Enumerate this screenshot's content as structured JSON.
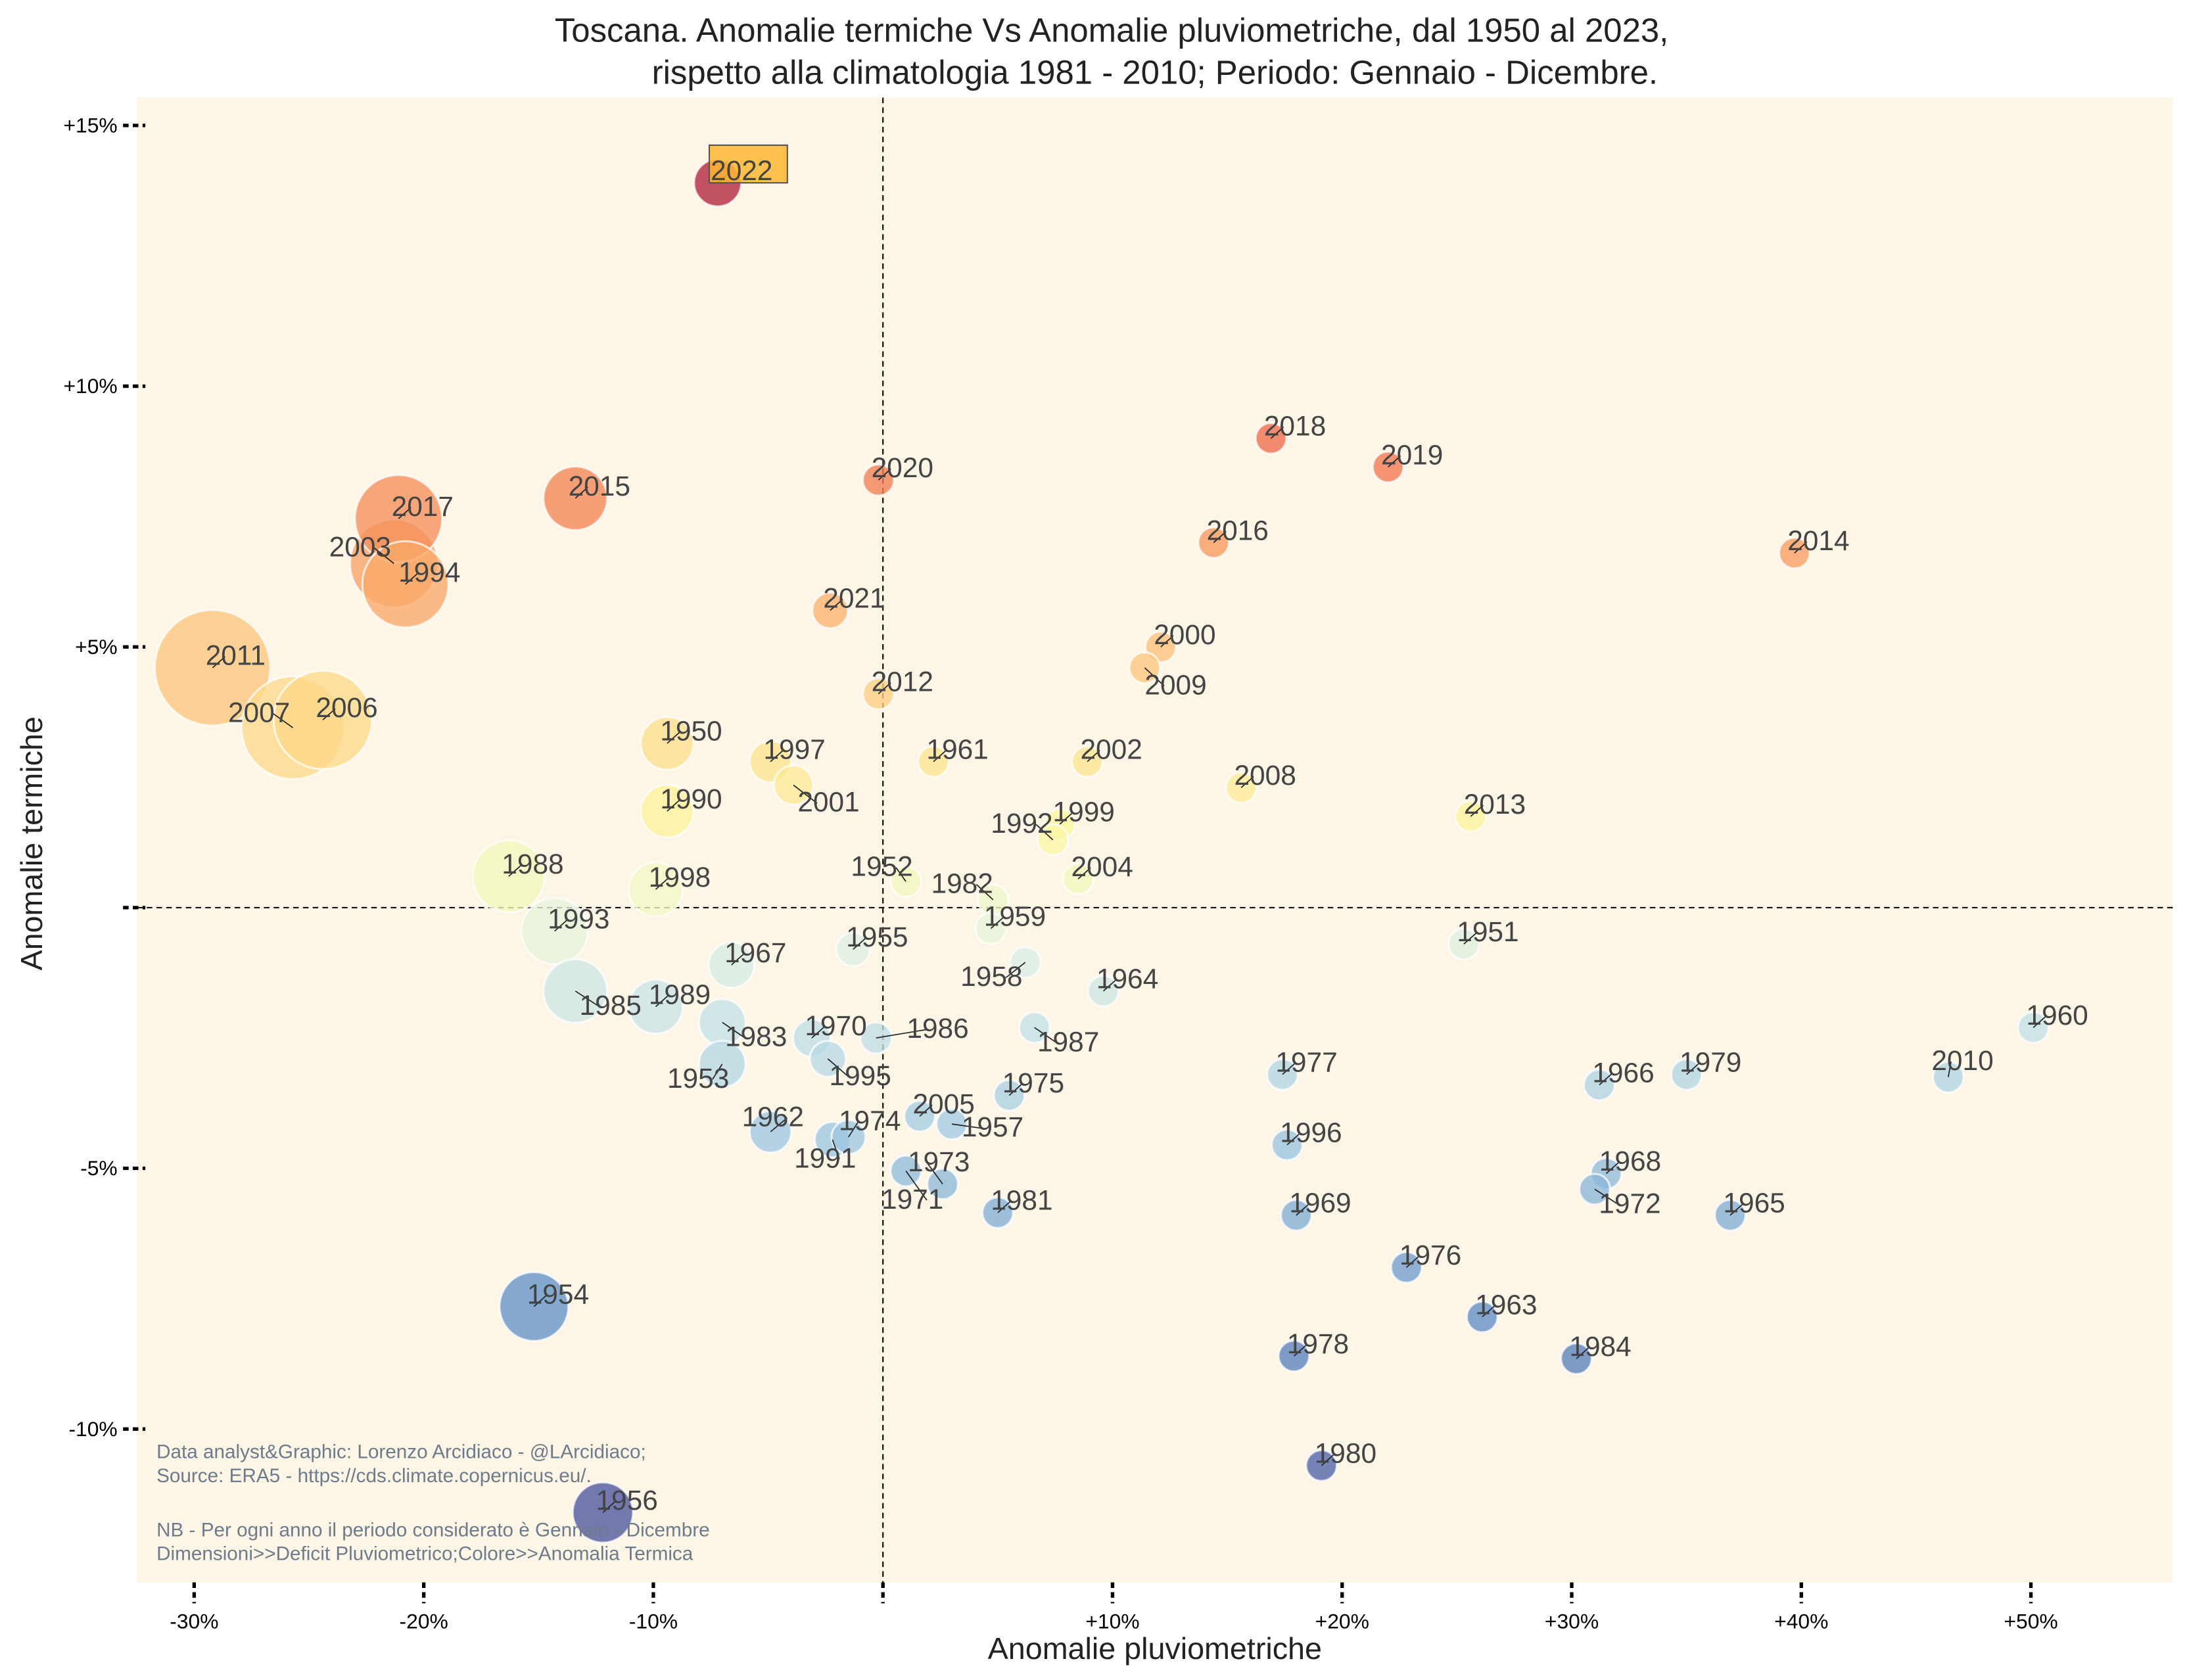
{
  "chart_data": {
    "type": "scatter",
    "title_line1": "Toscana. Anomalie termiche Vs Anomalie pluviometriche, dal 1950 al 2023,",
    "title_line2": "rispetto alla climatologia 1981 - 2010; Periodo: Gennaio - Dicembre.",
    "xlabel": "Anomalie pluviometriche",
    "ylabel": "Anomalie termiche",
    "xlim": [
      -32.5,
      56
    ],
    "ylim": [
      -13,
      15.5
    ],
    "x_ticks": [
      {
        "value": -30,
        "label": "-30%"
      },
      {
        "value": -20,
        "label": "-20%"
      },
      {
        "value": -10,
        "label": "-10%"
      },
      {
        "value": 0,
        "label": ""
      },
      {
        "value": 10,
        "label": "+10%"
      },
      {
        "value": 20,
        "label": "+20%"
      },
      {
        "value": 30,
        "label": "+30%"
      },
      {
        "value": 40,
        "label": "+40%"
      },
      {
        "value": 50,
        "label": "+50%"
      }
    ],
    "y_ticks": [
      {
        "value": 15,
        "label": "+15%"
      },
      {
        "value": 10,
        "label": "+10%"
      },
      {
        "value": 5,
        "label": "+5%"
      },
      {
        "value": 0,
        "label": ""
      },
      {
        "value": -5,
        "label": "-5%"
      },
      {
        "value": -10,
        "label": "-10%"
      }
    ],
    "grid": false,
    "reference_lines": {
      "x": 0,
      "y": 0
    },
    "size_encoding": "Deficit Pluviometrico",
    "color_encoding": "Anomalia Termica",
    "highlight": "2022",
    "points": [
      {
        "year": "2022",
        "x": -7.2,
        "y": 13.9
      },
      {
        "year": "2018",
        "x": 16.9,
        "y": 9.0
      },
      {
        "year": "2019",
        "x": 22.0,
        "y": 8.45
      },
      {
        "year": "2020",
        "x": -0.2,
        "y": 8.2
      },
      {
        "year": "2015",
        "x": -13.4,
        "y": 7.85
      },
      {
        "year": "2017",
        "x": -21.1,
        "y": 7.46
      },
      {
        "year": "2003",
        "x": -21.3,
        "y": 6.6
      },
      {
        "year": "1994",
        "x": -20.8,
        "y": 6.2
      },
      {
        "year": "2016",
        "x": 14.4,
        "y": 7.0
      },
      {
        "year": "2014",
        "x": 39.7,
        "y": 6.8
      },
      {
        "year": "2021",
        "x": -2.3,
        "y": 5.7
      },
      {
        "year": "2011",
        "x": -29.2,
        "y": 4.6
      },
      {
        "year": "2000",
        "x": 12.1,
        "y": 5.0
      },
      {
        "year": "2009",
        "x": 11.4,
        "y": 4.6
      },
      {
        "year": "2012",
        "x": -0.2,
        "y": 4.1
      },
      {
        "year": "2007",
        "x": -25.7,
        "y": 3.45
      },
      {
        "year": "2006",
        "x": -24.4,
        "y": 3.6
      },
      {
        "year": "1950",
        "x": -9.4,
        "y": 3.15
      },
      {
        "year": "1997",
        "x": -4.9,
        "y": 2.8
      },
      {
        "year": "2001",
        "x": -3.9,
        "y": 2.35
      },
      {
        "year": "1961",
        "x": 2.2,
        "y": 2.8
      },
      {
        "year": "2002",
        "x": 8.9,
        "y": 2.8
      },
      {
        "year": "2008",
        "x": 15.6,
        "y": 2.3
      },
      {
        "year": "2013",
        "x": 25.6,
        "y": 1.75
      },
      {
        "year": "1990",
        "x": -9.4,
        "y": 1.85
      },
      {
        "year": "1999",
        "x": 7.7,
        "y": 1.6
      },
      {
        "year": "1992",
        "x": 7.4,
        "y": 1.3
      },
      {
        "year": "2004",
        "x": 8.5,
        "y": 0.55
      },
      {
        "year": "1988",
        "x": -16.3,
        "y": 0.6
      },
      {
        "year": "1998",
        "x": -9.9,
        "y": 0.35
      },
      {
        "year": "1952",
        "x": 1.0,
        "y": 0.5
      },
      {
        "year": "1982",
        "x": 4.8,
        "y": 0.15
      },
      {
        "year": "1993",
        "x": -14.3,
        "y": -0.45
      },
      {
        "year": "1959",
        "x": 4.7,
        "y": -0.4
      },
      {
        "year": "1955",
        "x": -1.3,
        "y": -0.8
      },
      {
        "year": "1951",
        "x": 25.3,
        "y": -0.7
      },
      {
        "year": "1967",
        "x": -6.6,
        "y": -1.1
      },
      {
        "year": "1958",
        "x": 6.2,
        "y": -1.05
      },
      {
        "year": "1964",
        "x": 9.6,
        "y": -1.6
      },
      {
        "year": "1985",
        "x": -13.4,
        "y": -1.6
      },
      {
        "year": "1989",
        "x": -9.9,
        "y": -1.9
      },
      {
        "year": "1983",
        "x": -7.0,
        "y": -2.2
      },
      {
        "year": "1960",
        "x": 50.1,
        "y": -2.3
      },
      {
        "year": "1970",
        "x": -3.1,
        "y": -2.5
      },
      {
        "year": "1986",
        "x": -0.3,
        "y": -2.5
      },
      {
        "year": "1987",
        "x": 6.6,
        "y": -2.3
      },
      {
        "year": "1953",
        "x": -7.0,
        "y": -3.0
      },
      {
        "year": "1995",
        "x": -2.4,
        "y": -2.9
      },
      {
        "year": "1977",
        "x": 17.4,
        "y": -3.2
      },
      {
        "year": "2010",
        "x": 46.4,
        "y": -3.25
      },
      {
        "year": "1966",
        "x": 31.2,
        "y": -3.4
      },
      {
        "year": "1979",
        "x": 35.0,
        "y": -3.2
      },
      {
        "year": "1975",
        "x": 5.5,
        "y": -3.6
      },
      {
        "year": "2005",
        "x": 1.6,
        "y": -4.0
      },
      {
        "year": "1957",
        "x": 3.0,
        "y": -4.15
      },
      {
        "year": "1962",
        "x": -4.9,
        "y": -4.3
      },
      {
        "year": "1974",
        "x": -1.5,
        "y": -4.4
      },
      {
        "year": "1991",
        "x": -2.2,
        "y": -4.45
      },
      {
        "year": "1996",
        "x": 17.6,
        "y": -4.55
      },
      {
        "year": "1968",
        "x": 31.5,
        "y": -5.1
      },
      {
        "year": "1973",
        "x": 2.6,
        "y": -5.3
      },
      {
        "year": "1972",
        "x": 31.0,
        "y": -5.4
      },
      {
        "year": "1971",
        "x": 1.0,
        "y": -5.05
      },
      {
        "year": "1981",
        "x": 5.0,
        "y": -5.85
      },
      {
        "year": "1969",
        "x": 18.0,
        "y": -5.9
      },
      {
        "year": "1965",
        "x": 36.9,
        "y": -5.9
      },
      {
        "year": "1976",
        "x": 22.8,
        "y": -6.9
      },
      {
        "year": "1954",
        "x": -15.2,
        "y": -7.65
      },
      {
        "year": "1963",
        "x": 26.1,
        "y": -7.85
      },
      {
        "year": "1978",
        "x": 17.9,
        "y": -8.6
      },
      {
        "year": "1984",
        "x": 30.2,
        "y": -8.65
      },
      {
        "year": "1980",
        "x": 19.1,
        "y": -10.7
      },
      {
        "year": "1956",
        "x": -12.2,
        "y": -11.6
      }
    ],
    "annotations": {
      "credit": "Data analyst&Graphic: Lorenzo Arcidiaco - @LArcidiaco;",
      "source": "Source: ERA5 - https://cds.climate.copernicus.eu/.",
      "nb": "NB - Per ogni anno il periodo considerato è Gennaio - Dicembre",
      "legend_note": "Dimensioni>>Deficit Pluviometrico;Colore>>Anomalia Termica"
    },
    "colors": {
      "background": "#fdf5e6",
      "highlight_box": "#ffb732",
      "annotation_text": "#6e7b8b"
    }
  }
}
